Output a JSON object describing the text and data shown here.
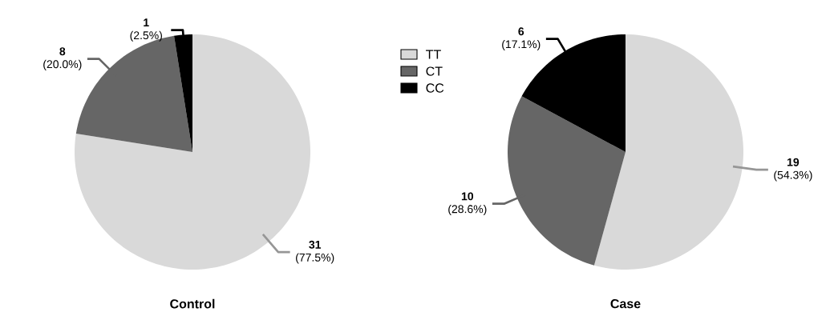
{
  "chart_data": [
    {
      "type": "pie",
      "title": "Control",
      "categories": [
        "TT",
        "CT",
        "CC"
      ],
      "values": [
        31,
        8,
        1
      ],
      "colors": [
        "#d9d9d9",
        "#666666",
        "#000000"
      ],
      "value_labels": [
        "**31** (77.5%)",
        "**8** (20.0%)",
        "**1** (2.5%)"
      ],
      "legend": "right"
    },
    {
      "type": "pie",
      "title": "Case",
      "categories": [
        null,
        null,
        null
      ],
      "values": [
        19,
        10,
        6
      ],
      "colors": [
        "#d9d9d9",
        "#666666",
        "#000000"
      ],
      "value_labels": [
        "**19** (54.3%)",
        "**10** (28.6%)",
        "**6** (17.1%)"
      ]
    }
  ]
}
